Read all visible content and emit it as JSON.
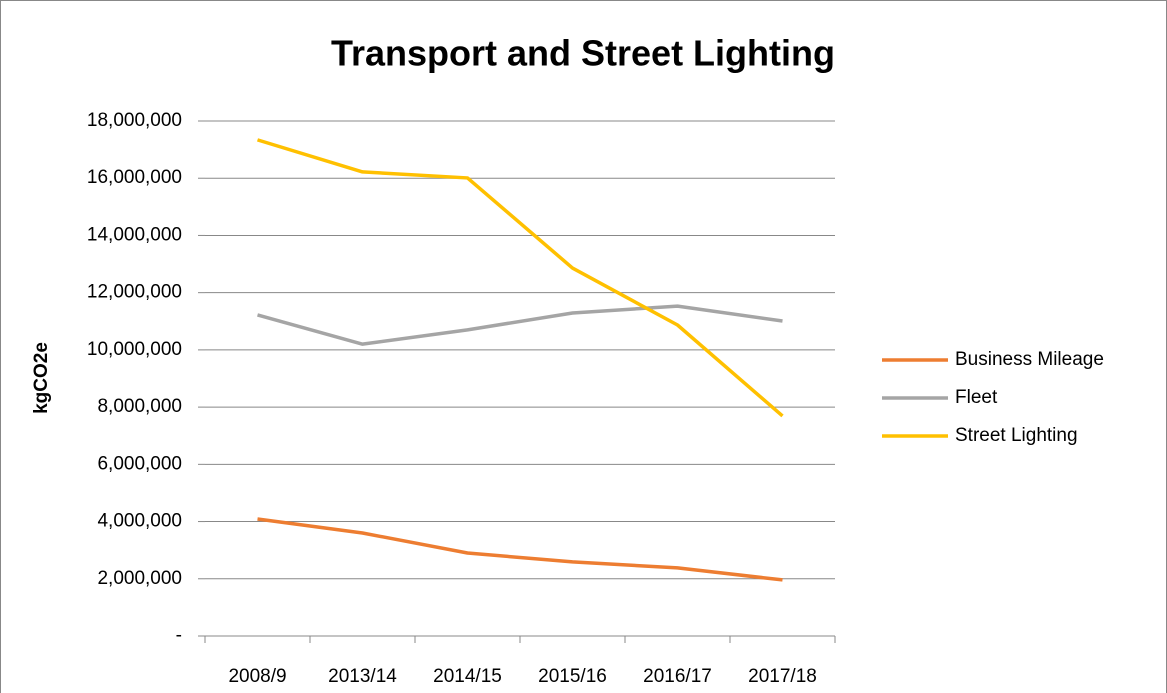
{
  "chart_data": {
    "type": "line",
    "title": "Transport and Street Lighting",
    "y_label": "kgCO2e",
    "categories": [
      "2008/9",
      "2013/14",
      "2014/15",
      "2015/16",
      "2016/17",
      "2017/18"
    ],
    "series": [
      {
        "name": "Business Mileage",
        "color": "#ED7D31",
        "values": [
          4090000,
          3600000,
          2900000,
          2590000,
          2380000,
          1960000
        ]
      },
      {
        "name": "Fleet",
        "color": "#A5A5A5",
        "values": [
          11220000,
          10200000,
          10700000,
          11290000,
          11530000,
          11010000
        ]
      },
      {
        "name": "Street Lighting",
        "color": "#FFC000",
        "values": [
          17340000,
          16220000,
          16010000,
          12860000,
          10870000,
          7690000
        ]
      }
    ],
    "ylim": [
      0,
      18000000
    ],
    "yticks": [
      {
        "value": 0,
        "label": "-"
      },
      {
        "value": 2000000,
        "label": "2,000,000"
      },
      {
        "value": 4000000,
        "label": "4,000,000"
      },
      {
        "value": 6000000,
        "label": "6,000,000"
      },
      {
        "value": 8000000,
        "label": "8,000,000"
      },
      {
        "value": 10000000,
        "label": "10,000,000"
      },
      {
        "value": 12000000,
        "label": "12,000,000"
      },
      {
        "value": 14000000,
        "label": "14,000,000"
      },
      {
        "value": 16000000,
        "label": "16,000,000"
      },
      {
        "value": 18000000,
        "label": "18,000,000"
      }
    ],
    "grid": true,
    "legend": "right"
  }
}
